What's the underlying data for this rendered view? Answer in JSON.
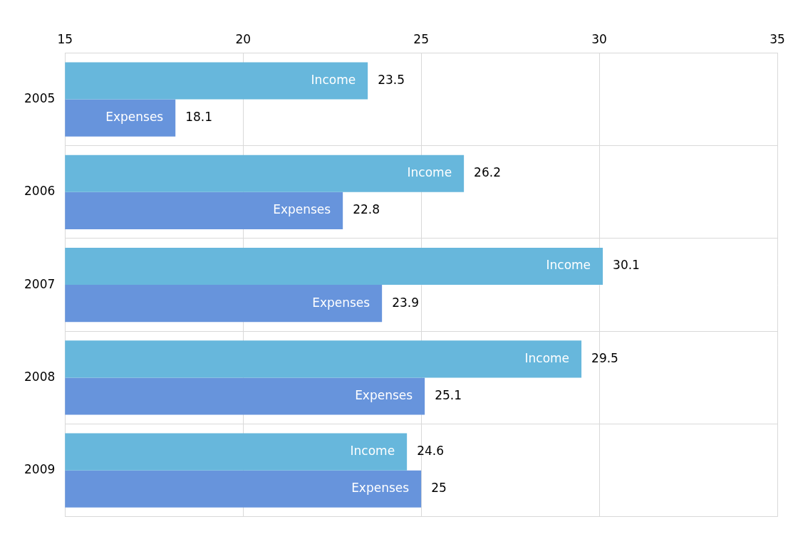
{
  "chart_data": {
    "type": "bar",
    "orientation": "horizontal",
    "categories": [
      "2005",
      "2006",
      "2007",
      "2008",
      "2009"
    ],
    "series": [
      {
        "name": "Income",
        "color": "#67b7dc",
        "values": [
          23.5,
          26.2,
          30.1,
          29.5,
          24.6
        ]
      },
      {
        "name": "Expenses",
        "color": "#6794dc",
        "values": [
          18.1,
          22.8,
          23.9,
          25.1,
          25
        ]
      }
    ],
    "xlim": [
      15,
      35
    ],
    "xticks": [
      15,
      20,
      25,
      30,
      35
    ],
    "grid": true,
    "data_labels": true
  }
}
